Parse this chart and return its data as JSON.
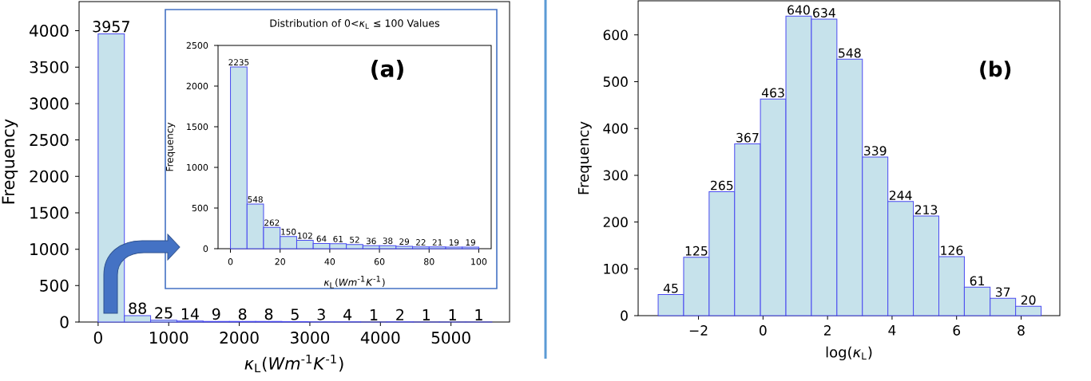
{
  "chart_data": [
    {
      "type": "histogram",
      "xlabel": "*κ*$_{L}$(*Wm*$^{-1}$*K*$^{-1}$)",
      "ylabel": "Frequency",
      "color": "#c6e2eb",
      "bins": [
        0,
        372,
        744,
        1116,
        1488,
        1860,
        2232,
        2604,
        2976,
        3348,
        3720,
        4092,
        4464,
        4836,
        5208,
        5580
      ],
      "values": [
        3957,
        88,
        25,
        14,
        9,
        8,
        8,
        5,
        3,
        4,
        1,
        2,
        1,
        1,
        1
      ],
      "xlim": [
        -270,
        5830
      ],
      "ylim": [
        0,
        4400
      ],
      "xticks": [
        0,
        1000,
        2000,
        3000,
        4000,
        5000
      ],
      "yticks": [
        0,
        500,
        1000,
        1500,
        2000,
        2500,
        3000,
        3500,
        4000
      ],
      "data_labels": true
    },
    {
      "type": "histogram",
      "title": "Distribution of 0<*κ*$_{L}$ ≤ 100 Values",
      "xlabel": "*κ*$_{L}$(*Wm*$^{-1}$*K*$^{-1}$)",
      "ylabel": "Frequency",
      "color": "#c6e2eb",
      "bins": [
        0,
        6.67,
        13.33,
        20,
        26.67,
        33.33,
        40,
        46.67,
        53.33,
        60,
        66.67,
        73.33,
        80,
        86.67,
        93.33,
        100
      ],
      "values": [
        2235,
        548,
        262,
        150,
        102,
        64,
        61,
        52,
        36,
        38,
        29,
        22,
        21,
        19,
        19
      ],
      "xlim": [
        -5,
        105
      ],
      "ylim": [
        0,
        2500
      ],
      "xticks": [
        0,
        20,
        40,
        60,
        80,
        100
      ],
      "yticks": [
        0,
        500,
        1000,
        1500,
        2000,
        2500
      ],
      "data_labels": true,
      "annotations": [
        "(a)"
      ]
    },
    {
      "type": "histogram",
      "xlabel": "log(*κ*$_{L}$)",
      "ylabel": "Frequency",
      "color": "#c6e2eb",
      "bins": [
        -3.25,
        -2.46,
        -1.67,
        -0.88,
        -0.08,
        0.71,
        1.5,
        2.29,
        3.08,
        3.87,
        4.66,
        5.45,
        6.24,
        7.04,
        7.83,
        8.62
      ],
      "values": [
        45,
        125,
        265,
        367,
        463,
        640,
        634,
        548,
        339,
        244,
        213,
        126,
        61,
        37,
        20
      ],
      "xlim": [
        -3.87,
        9.2
      ],
      "ylim": [
        0,
        673
      ],
      "xticks": [
        {
          "value": -2,
          "label": "−2"
        },
        0,
        2,
        4,
        6,
        8
      ],
      "yticks": [
        0,
        100,
        200,
        300,
        400,
        500,
        600
      ],
      "data_labels": true,
      "annotations": [
        "(b)"
      ]
    }
  ]
}
